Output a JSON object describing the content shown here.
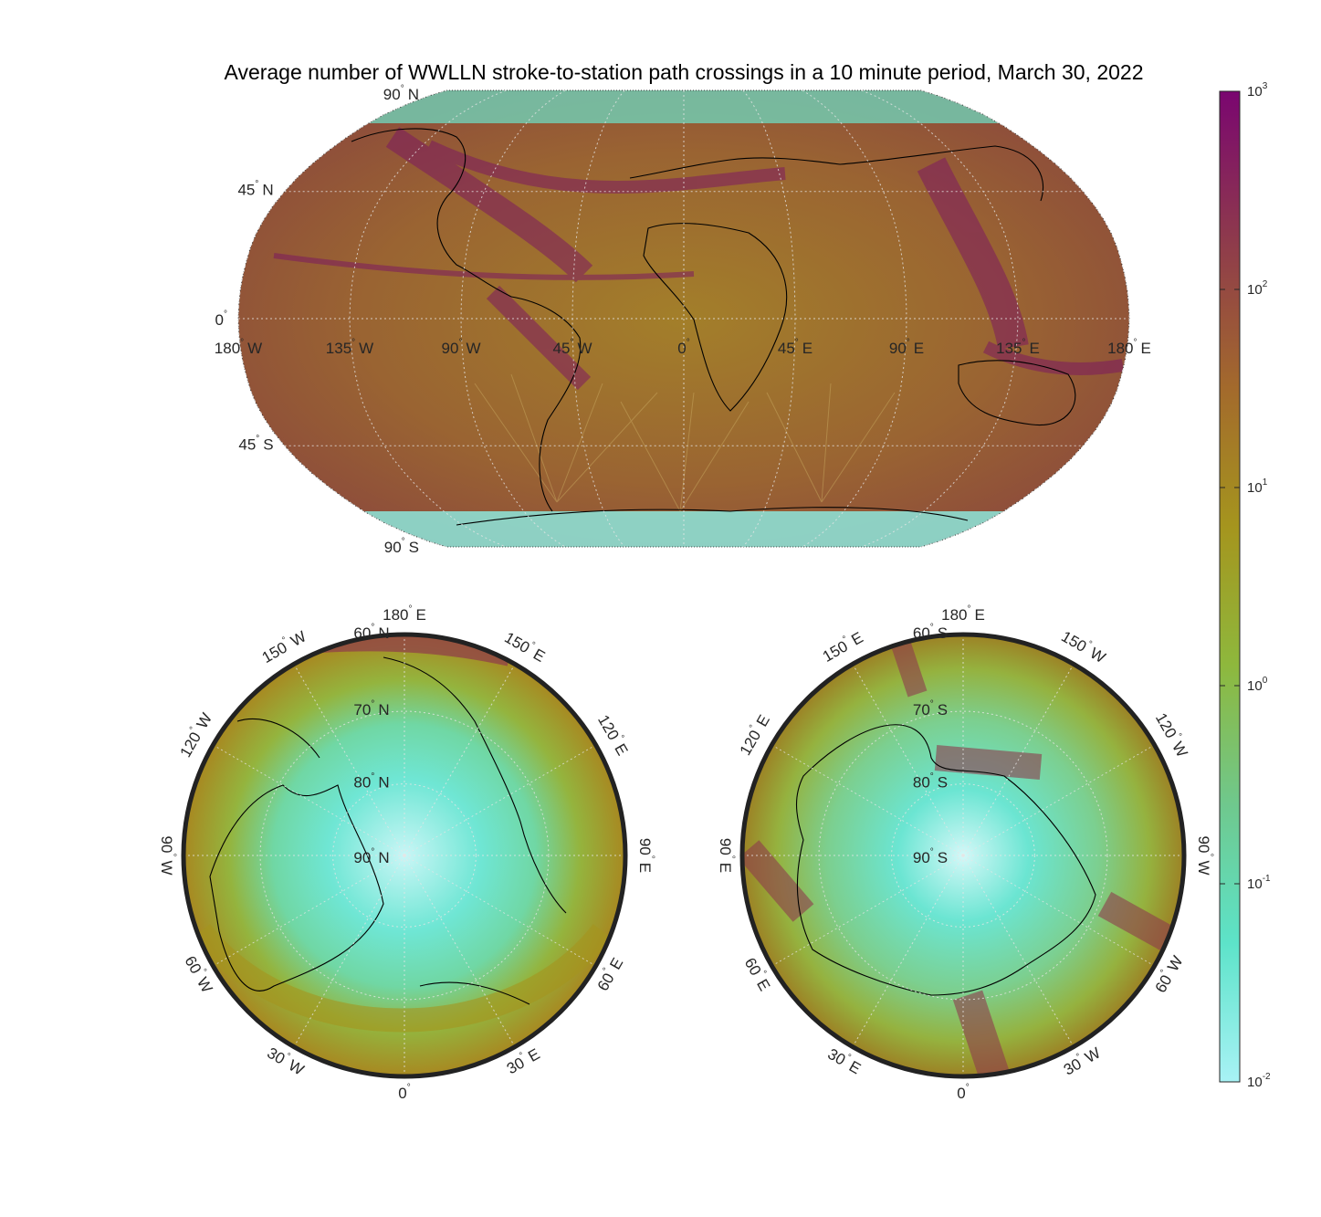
{
  "chart_data": [
    {
      "type": "heatmap",
      "projection": "robinson",
      "title": "Average number of WWLLN stroke-to-station path crossings in a 10 minute period, March 30, 2022",
      "lat_ticks": [
        {
          "value": 90,
          "label": "90",
          "hemi": "N"
        },
        {
          "value": 45,
          "label": "45",
          "hemi": "N"
        },
        {
          "value": 0,
          "label": "0",
          "hemi": ""
        },
        {
          "value": -45,
          "label": "45",
          "hemi": "S"
        },
        {
          "value": -90,
          "label": "90",
          "hemi": "S"
        }
      ],
      "lon_ticks": [
        {
          "value": -180,
          "label": "180",
          "hemi": "W"
        },
        {
          "value": -135,
          "label": "135",
          "hemi": "W"
        },
        {
          "value": -90,
          "label": "90",
          "hemi": "W"
        },
        {
          "value": -45,
          "label": "45",
          "hemi": "W"
        },
        {
          "value": 0,
          "label": "0",
          "hemi": ""
        },
        {
          "value": 45,
          "label": "45",
          "hemi": "E"
        },
        {
          "value": 90,
          "label": "90",
          "hemi": "E"
        },
        {
          "value": 135,
          "label": "135",
          "hemi": "E"
        },
        {
          "value": 180,
          "label": "180",
          "hemi": "E"
        }
      ]
    },
    {
      "type": "heatmap",
      "projection": "north-polar stereographic",
      "lat_rings": [
        {
          "value": 60,
          "label": "60",
          "hemi": "N"
        },
        {
          "value": 70,
          "label": "70",
          "hemi": "N"
        },
        {
          "value": 80,
          "label": "80",
          "hemi": "N"
        },
        {
          "value": 90,
          "label": "90",
          "hemi": "N"
        }
      ],
      "lon_labels": [
        {
          "value": 0,
          "label": "0",
          "hemi": ""
        },
        {
          "value": 30,
          "label": "30",
          "hemi": "E"
        },
        {
          "value": 60,
          "label": "60",
          "hemi": "E"
        },
        {
          "value": 90,
          "label": "90",
          "hemi": "E"
        },
        {
          "value": 120,
          "label": "120",
          "hemi": "E"
        },
        {
          "value": 150,
          "label": "150",
          "hemi": "E"
        },
        {
          "value": 180,
          "label": "180",
          "hemi": "E"
        },
        {
          "value": -150,
          "label": "150",
          "hemi": "W"
        },
        {
          "value": -120,
          "label": "120",
          "hemi": "W"
        },
        {
          "value": -90,
          "label": "90",
          "hemi": "W"
        },
        {
          "value": -60,
          "label": "60",
          "hemi": "W"
        },
        {
          "value": -30,
          "label": "30",
          "hemi": "W"
        }
      ]
    },
    {
      "type": "heatmap",
      "projection": "south-polar stereographic",
      "lat_rings": [
        {
          "value": -60,
          "label": "60",
          "hemi": "S"
        },
        {
          "value": -70,
          "label": "70",
          "hemi": "S"
        },
        {
          "value": -80,
          "label": "80",
          "hemi": "S"
        },
        {
          "value": -90,
          "label": "90",
          "hemi": "S"
        }
      ],
      "lon_labels": [
        {
          "value": 0,
          "label": "0",
          "hemi": ""
        },
        {
          "value": -30,
          "label": "30",
          "hemi": "W"
        },
        {
          "value": -60,
          "label": "60",
          "hemi": "W"
        },
        {
          "value": -90,
          "label": "90",
          "hemi": "W"
        },
        {
          "value": -120,
          "label": "120",
          "hemi": "W"
        },
        {
          "value": -150,
          "label": "150",
          "hemi": "W"
        },
        {
          "value": 180,
          "label": "180",
          "hemi": "E"
        },
        {
          "value": 150,
          "label": "150",
          "hemi": "E"
        },
        {
          "value": 120,
          "label": "120",
          "hemi": "E"
        },
        {
          "value": 90,
          "label": "90",
          "hemi": "E"
        },
        {
          "value": 60,
          "label": "60",
          "hemi": "E"
        },
        {
          "value": 30,
          "label": "30",
          "hemi": "E"
        }
      ]
    }
  ],
  "colorbar": {
    "scale": "log",
    "range": [
      0.01,
      1000
    ],
    "ticks": [
      {
        "value": 1000,
        "base": "10",
        "exp": "3"
      },
      {
        "value": 100,
        "base": "10",
        "exp": "2"
      },
      {
        "value": 10,
        "base": "10",
        "exp": "1"
      },
      {
        "value": 1,
        "base": "10",
        "exp": "0"
      },
      {
        "value": 0.1,
        "base": "10",
        "exp": "-1"
      },
      {
        "value": 0.01,
        "base": "10",
        "exp": "-2"
      }
    ],
    "colors": [
      "#a8f2f5",
      "#5de3c9",
      "#6fc88d",
      "#8eb83d",
      "#a5951e",
      "#a36a2c",
      "#8e3a4c",
      "#7a0670"
    ]
  },
  "degree_symbol": "°"
}
